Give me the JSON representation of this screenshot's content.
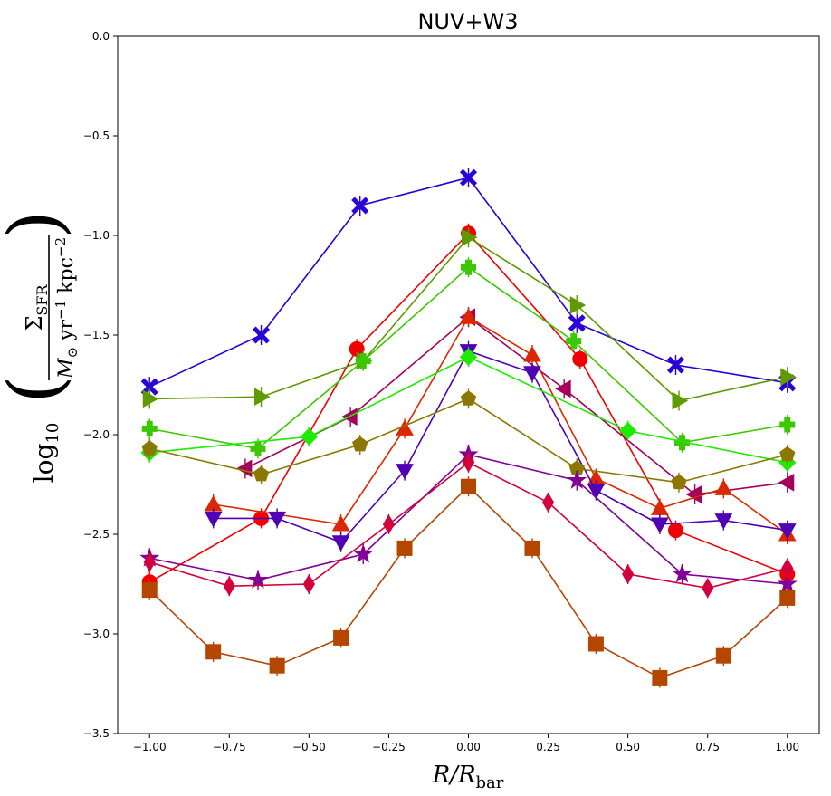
{
  "chart_data": {
    "type": "line",
    "title": "NUV+W3",
    "xlabel": "R/R_bar",
    "ylabel": "log10(Σ_SFR / (M_⊙ yr^-1 kpc^-2))",
    "xlabel_parts": {
      "main": "R/R",
      "sub": "bar"
    },
    "ylabel_parts": {
      "log": "log",
      "log_sub": "10",
      "sigma": "Σ",
      "sigma_sub": "SFR",
      "unit_m": "M",
      "unit_m_sub": "⊙",
      "unit_yr": " yr",
      "unit_yr_sup": "−1",
      "unit_kpc": " kpc",
      "unit_kpc_sup": "−2"
    },
    "xlim": [
      -1.1,
      1.1
    ],
    "ylim": [
      -3.5,
      0.0
    ],
    "xticks": [
      -1.0,
      -0.75,
      -0.5,
      -0.25,
      0.0,
      0.25,
      0.5,
      0.75,
      1.0
    ],
    "xtick_labels": [
      "−1.00",
      "−0.75",
      "−0.50",
      "−0.25",
      "0.00",
      "0.25",
      "0.50",
      "0.75",
      "1.00"
    ],
    "yticks": [
      0.0,
      -0.5,
      -1.0,
      -1.5,
      -2.0,
      -2.5,
      -3.0,
      -3.5
    ],
    "ytick_labels": [
      "0.0",
      "−0.5",
      "−1.0",
      "−1.5",
      "−2.0",
      "−2.5",
      "−3.0",
      "−3.5"
    ],
    "series": [
      {
        "name": "blue-x",
        "color": "#2a00d8",
        "marker": "X",
        "x": [
          -1.0,
          -0.65,
          -0.34,
          0.0,
          0.34,
          0.65,
          1.0
        ],
        "y": [
          -1.76,
          -1.5,
          -0.85,
          -0.71,
          -1.44,
          -1.65,
          -1.74
        ]
      },
      {
        "name": "red-circle",
        "color": "#f00000",
        "marker": "o",
        "x": [
          -1.0,
          -0.65,
          -0.35,
          0.0,
          0.35,
          0.65,
          1.0
        ],
        "y": [
          -2.74,
          -2.42,
          -1.57,
          -0.99,
          -1.62,
          -2.48,
          -2.7
        ]
      },
      {
        "name": "olive-triangle-right",
        "color": "#5f9a00",
        "marker": ">",
        "x": [
          -1.0,
          -0.65,
          -0.33,
          0.0,
          0.34,
          0.66,
          1.0
        ],
        "y": [
          -1.82,
          -1.81,
          -1.63,
          -1.01,
          -1.35,
          -1.83,
          -1.71
        ]
      },
      {
        "name": "green-plus",
        "color": "#3cc800",
        "marker": "P",
        "x": [
          -1.0,
          -0.66,
          -0.33,
          0.0,
          0.33,
          0.67,
          1.0
        ],
        "y": [
          -1.97,
          -2.07,
          -1.63,
          -1.16,
          -1.53,
          -2.04,
          -1.95
        ]
      },
      {
        "name": "magenta-triangle-left",
        "color": "#a5005a",
        "marker": "<",
        "x": [
          -0.7,
          -0.37,
          0.0,
          0.3,
          0.71,
          1.0
        ],
        "y": [
          -2.17,
          -1.91,
          -1.41,
          -1.77,
          -2.3,
          -2.24
        ]
      },
      {
        "name": "orange-triangle-up",
        "color": "#dc2800",
        "marker": "^",
        "x": [
          -0.8,
          -0.4,
          -0.2,
          0.0,
          0.2,
          0.4,
          0.6,
          0.8,
          1.0
        ],
        "y": [
          -2.35,
          -2.45,
          -1.97,
          -1.41,
          -1.6,
          -2.22,
          -2.37,
          -2.27,
          -2.5
        ]
      },
      {
        "name": "purple-triangle-down",
        "color": "#5000b4",
        "marker": "v",
        "x": [
          -0.8,
          -0.6,
          -0.4,
          -0.2,
          0.0,
          0.2,
          0.4,
          0.6,
          0.8,
          1.0
        ],
        "y": [
          -2.42,
          -2.42,
          -2.54,
          -2.18,
          -1.58,
          -1.69,
          -2.28,
          -2.45,
          -2.43,
          -2.48
        ]
      },
      {
        "name": "lime-diamond",
        "color": "#1eeb00",
        "marker": "D",
        "x": [
          -1.0,
          -0.5,
          0.0,
          0.5,
          1.0
        ],
        "y": [
          -2.09,
          -2.01,
          -1.61,
          -1.98,
          -2.14
        ]
      },
      {
        "name": "gold-pentagon",
        "color": "#8c7800",
        "marker": "p",
        "x": [
          -1.0,
          -0.65,
          -0.34,
          0.0,
          0.34,
          0.66,
          1.0
        ],
        "y": [
          -2.07,
          -2.2,
          -2.05,
          -1.82,
          -2.17,
          -2.24,
          -2.1
        ]
      },
      {
        "name": "violet-star",
        "color": "#820096",
        "marker": "*",
        "x": [
          -1.0,
          -0.66,
          -0.33,
          0.0,
          0.34,
          0.67,
          1.0
        ],
        "y": [
          -2.62,
          -2.73,
          -2.6,
          -2.1,
          -2.23,
          -2.7,
          -2.75
        ]
      },
      {
        "name": "crimson-thin-diamond",
        "color": "#d2003c",
        "marker": "d",
        "x": [
          -1.0,
          -0.75,
          -0.5,
          -0.25,
          0.0,
          0.25,
          0.5,
          0.75,
          1.0
        ],
        "y": [
          -2.64,
          -2.76,
          -2.75,
          -2.45,
          -2.14,
          -2.34,
          -2.7,
          -2.77,
          -2.67
        ]
      },
      {
        "name": "brown-square",
        "color": "#b44600",
        "marker": "s",
        "x": [
          -1.0,
          -0.8,
          -0.6,
          -0.4,
          -0.2,
          0.0,
          0.2,
          0.4,
          0.6,
          0.8,
          1.0
        ],
        "y": [
          -2.78,
          -3.09,
          -3.16,
          -3.02,
          -2.57,
          -2.26,
          -2.57,
          -3.05,
          -3.22,
          -3.11,
          -2.82
        ]
      }
    ]
  }
}
